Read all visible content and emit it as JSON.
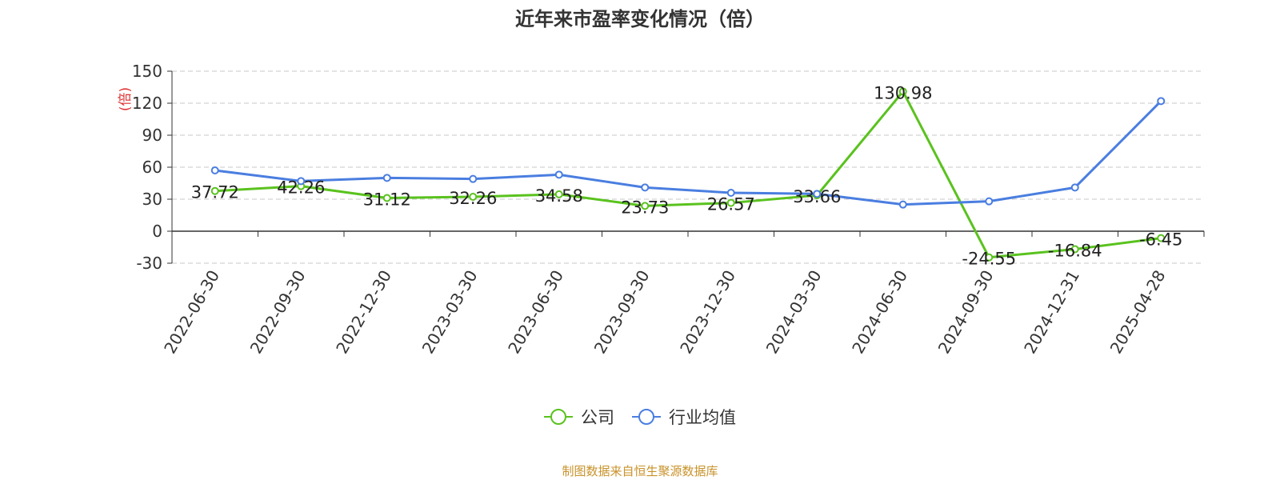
{
  "chart_data": {
    "type": "line",
    "title": "近年来市盈率变化情况（倍）",
    "ylabel": "(倍)",
    "xlabel": "",
    "categories": [
      "2022-06-30",
      "2022-09-30",
      "2022-12-30",
      "2023-03-30",
      "2023-06-30",
      "2023-09-30",
      "2023-12-30",
      "2024-03-30",
      "2024-06-30",
      "2024-09-30",
      "2024-12-31",
      "2025-04-28"
    ],
    "ylim": [
      -30,
      150
    ],
    "yticks": [
      -30,
      0,
      30,
      60,
      90,
      120,
      150
    ],
    "ytick_labels": [
      "-30",
      "0",
      "30",
      "60",
      "90",
      "120",
      "150"
    ],
    "grid": "horizontal dashed",
    "legend_position": "bottom-center",
    "series": [
      {
        "name": "公司",
        "color": "#5ac21e",
        "values": [
          37.72,
          42.26,
          31.12,
          32.26,
          34.58,
          23.73,
          26.57,
          33.66,
          130.98,
          -24.55,
          -16.84,
          -6.45
        ],
        "labels": [
          "37.72",
          "42.26",
          "31.12",
          "32.26",
          "34.58",
          "23.73",
          "26.57",
          "33.66",
          "130.98",
          "-24.55",
          "-16.84",
          "-6.45"
        ]
      },
      {
        "name": "行业均值",
        "color": "#4a7ee0",
        "values": [
          57,
          47,
          50,
          49,
          53,
          41,
          36,
          35,
          25,
          28,
          41,
          122
        ]
      }
    ]
  },
  "source_note": "制图数据来自恒生聚源数据库"
}
